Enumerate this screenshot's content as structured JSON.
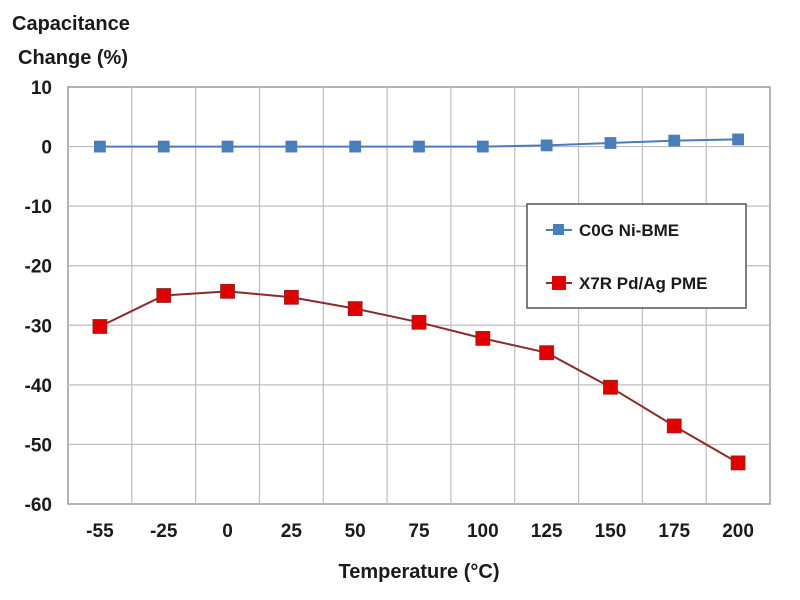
{
  "chart_data": {
    "type": "line",
    "title": "",
    "ylabel_lines": [
      "Capacitance",
      "Change (%)"
    ],
    "xlabel": "Temperature (°C)",
    "categories": [
      "-55",
      "-25",
      "0",
      "25",
      "50",
      "75",
      "100",
      "125",
      "150",
      "175",
      "200"
    ],
    "ylim": [
      -60,
      10
    ],
    "yticks": [
      10,
      0,
      -10,
      -20,
      -30,
      -40,
      -50,
      -60
    ],
    "grid": true,
    "legend_position": "right-upper-inside",
    "series": [
      {
        "name": "C0G Ni-BME",
        "color": "#4a7ebb",
        "marker": "square",
        "values": [
          0,
          0,
          0,
          0,
          0,
          0,
          0,
          0.2,
          0.6,
          1.0,
          1.2
        ]
      },
      {
        "name": "X7R Pd/Ag PME",
        "color": "#e00000",
        "line_color": "#8b2a2a",
        "marker": "square",
        "values": [
          -30.2,
          -25.0,
          -24.3,
          -25.3,
          -27.2,
          -29.5,
          -32.2,
          -34.6,
          -40.4,
          -46.9,
          -53.1
        ]
      }
    ]
  }
}
